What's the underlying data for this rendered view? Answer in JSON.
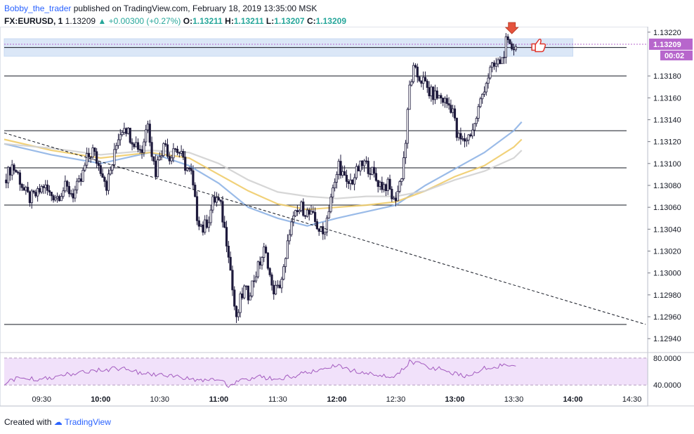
{
  "header": {
    "author": "Bobby_the_trader",
    "published": "published on TradingView.com, February 18, 2019 13:35:00 MSK",
    "symbol": "FX:EURUSD, 1",
    "last": "1.13209",
    "change": "+0.00300 (+0.27%)",
    "o_label": "O:",
    "o_value": "1.13211",
    "h_label": "H:",
    "h_value": "1.13211",
    "l_label": "L:",
    "l_value": "1.13207",
    "c_label": "C:",
    "c_value": "1.13209"
  },
  "footer": {
    "created_with": "Created with",
    "brand": "TradingView"
  },
  "colors": {
    "candle_up": "#ffffff",
    "candle_down": "#1e1a3c",
    "ma_blue": "#8fb4e6",
    "ma_gold": "#f0cc6a",
    "ma_gray": "#d2d2d2",
    "rsi_line": "#a35bbf",
    "rsi_band": "#f1e1fa",
    "zone": "#dbe7f7",
    "price_tag": "#b766cc"
  },
  "chart_data": {
    "type": "candlestick",
    "symbol": "FX:EURUSD",
    "ylim": [
      1.12935,
      1.13225
    ],
    "y_ticks": [
      "1.13220",
      "1.13180",
      "1.13160",
      "1.13140",
      "1.13120",
      "1.13100",
      "1.13080",
      "1.13060",
      "1.13040",
      "1.13020",
      "1.13000",
      "1.12980",
      "1.12960",
      "1.12940"
    ],
    "x_ticks": [
      "09:30",
      "10:00",
      "10:30",
      "11:00",
      "11:30",
      "12:00",
      "12:30",
      "13:00",
      "13:30",
      "14:00",
      "14:30"
    ],
    "x_tick_minutes": [
      570,
      600,
      630,
      660,
      690,
      720,
      750,
      780,
      810,
      840,
      870
    ],
    "x_range_minutes": [
      551,
      878
    ],
    "last_price": "1.13209",
    "countdown": "00:02",
    "horizontal_levels": [
      1.13206,
      1.1318,
      1.1313,
      1.13096,
      1.13062,
      1.12953
    ],
    "resistance_zone": [
      1.13198,
      1.13214
    ],
    "trendline": {
      "start": [
        551,
        1.13128
      ],
      "end": [
        877,
        1.12953
      ]
    },
    "close_path": [
      [
        551,
        1.13085
      ],
      [
        555,
        1.13098
      ],
      [
        558,
        1.1309
      ],
      [
        561,
        1.13075
      ],
      [
        564,
        1.13068
      ],
      [
        568,
        1.13072
      ],
      [
        571,
        1.1308
      ],
      [
        574,
        1.13072
      ],
      [
        578,
        1.1307
      ],
      [
        582,
        1.13078
      ],
      [
        586,
        1.13072
      ],
      [
        590,
        1.13084
      ],
      [
        593,
        1.13104
      ],
      [
        596,
        1.13112
      ],
      [
        599,
        1.13098
      ],
      [
        601,
        1.13092
      ],
      [
        603,
        1.1308
      ],
      [
        606,
        1.131
      ],
      [
        609,
        1.13125
      ],
      [
        612,
        1.13136
      ],
      [
        615,
        1.13125
      ],
      [
        618,
        1.13118
      ],
      [
        621,
        1.13112
      ],
      [
        624,
        1.1314
      ],
      [
        626,
        1.1311
      ],
      [
        628,
        1.13092
      ],
      [
        630,
        1.1311
      ],
      [
        633,
        1.13118
      ],
      [
        635,
        1.13105
      ],
      [
        637,
        1.13115
      ],
      [
        640,
        1.1311
      ],
      [
        643,
        1.13098
      ],
      [
        646,
        1.1309
      ],
      [
        649,
        1.13052
      ],
      [
        652,
        1.1304
      ],
      [
        655,
        1.1305
      ],
      [
        657,
        1.13065
      ],
      [
        659,
        1.13068
      ],
      [
        661,
        1.1306
      ],
      [
        663,
        1.1304
      ],
      [
        665,
        1.1302
      ],
      [
        667,
        1.12985
      ],
      [
        669,
        1.12955
      ],
      [
        671,
        1.12975
      ],
      [
        673,
        1.12985
      ],
      [
        675,
        1.1298
      ],
      [
        677,
        1.1299
      ],
      [
        679,
        1.13
      ],
      [
        681,
        1.1301
      ],
      [
        683,
        1.1302
      ],
      [
        685,
        1.1301
      ],
      [
        687,
        1.12985
      ],
      [
        690,
        1.12985
      ],
      [
        692,
        1.12995
      ],
      [
        694,
        1.1301
      ],
      [
        696,
        1.1304
      ],
      [
        699,
        1.13052
      ],
      [
        702,
        1.1306
      ],
      [
        705,
        1.13055
      ],
      [
        708,
        1.1305
      ],
      [
        711,
        1.1304
      ],
      [
        713,
        1.13035
      ],
      [
        715,
        1.1305
      ],
      [
        717,
        1.1307
      ],
      [
        719,
        1.1308
      ],
      [
        721,
        1.131
      ],
      [
        723,
        1.1309
      ],
      [
        725,
        1.1308
      ],
      [
        728,
        1.13085
      ],
      [
        731,
        1.13095
      ],
      [
        734,
        1.131
      ],
      [
        737,
        1.13095
      ],
      [
        740,
        1.13085
      ],
      [
        743,
        1.1308
      ],
      [
        746,
        1.1308
      ],
      [
        749,
        1.13065
      ],
      [
        751,
        1.13075
      ],
      [
        753,
        1.1309
      ],
      [
        755,
        1.1312
      ],
      [
        757,
        1.1317
      ],
      [
        759,
        1.13185
      ],
      [
        761,
        1.1318
      ],
      [
        764,
        1.13175
      ],
      [
        767,
        1.13165
      ],
      [
        770,
        1.13162
      ],
      [
        773,
        1.1316
      ],
      [
        776,
        1.13155
      ],
      [
        779,
        1.1315
      ],
      [
        781,
        1.13125
      ],
      [
        784,
        1.1312
      ],
      [
        787,
        1.13125
      ],
      [
        790,
        1.13135
      ],
      [
        792,
        1.1315
      ],
      [
        795,
        1.1317
      ],
      [
        798,
        1.13185
      ],
      [
        801,
        1.1319
      ],
      [
        804,
        1.13195
      ],
      [
        806,
        1.1321
      ],
      [
        808,
        1.13205
      ],
      [
        811,
        1.13209
      ]
    ],
    "moving_averages": [
      {
        "name": "",
        "color_key": "ma_blue",
        "points": [
          [
            551,
            1.13118
          ],
          [
            575,
            1.13108
          ],
          [
            600,
            1.131
          ],
          [
            625,
            1.1311
          ],
          [
            645,
            1.13098
          ],
          [
            660,
            1.13082
          ],
          [
            675,
            1.1306
          ],
          [
            690,
            1.1305
          ],
          [
            705,
            1.13043
          ],
          [
            720,
            1.1305
          ],
          [
            735,
            1.13056
          ],
          [
            750,
            1.13062
          ],
          [
            765,
            1.1308
          ],
          [
            780,
            1.13095
          ],
          [
            795,
            1.1311
          ],
          [
            810,
            1.1313
          ],
          [
            814,
            1.13138
          ]
        ]
      },
      {
        "name": "",
        "color_key": "ma_gold",
        "points": [
          [
            551,
            1.13122
          ],
          [
            575,
            1.13112
          ],
          [
            600,
            1.13105
          ],
          [
            625,
            1.1311
          ],
          [
            645,
            1.13105
          ],
          [
            660,
            1.1309
          ],
          [
            675,
            1.13075
          ],
          [
            690,
            1.13063
          ],
          [
            705,
            1.13058
          ],
          [
            720,
            1.1306
          ],
          [
            735,
            1.13062
          ],
          [
            750,
            1.13065
          ],
          [
            765,
            1.13075
          ],
          [
            780,
            1.13088
          ],
          [
            795,
            1.13098
          ],
          [
            810,
            1.13115
          ],
          [
            814,
            1.13122
          ]
        ]
      },
      {
        "name": "",
        "color_key": "ma_gray",
        "points": [
          [
            551,
            1.13118
          ],
          [
            575,
            1.13114
          ],
          [
            600,
            1.13108
          ],
          [
            625,
            1.13112
          ],
          [
            645,
            1.1311
          ],
          [
            660,
            1.131
          ],
          [
            675,
            1.13085
          ],
          [
            690,
            1.13074
          ],
          [
            705,
            1.1307
          ],
          [
            720,
            1.13068
          ],
          [
            735,
            1.1307
          ],
          [
            750,
            1.1307
          ],
          [
            765,
            1.13075
          ],
          [
            780,
            1.13085
          ],
          [
            795,
            1.13093
          ],
          [
            810,
            1.13105
          ],
          [
            814,
            1.13112
          ]
        ]
      }
    ],
    "rsi": {
      "levels": [
        "80.0000",
        "40.0000"
      ],
      "level_values": [
        80,
        40
      ],
      "ylim": [
        35,
        84
      ],
      "points": [
        [
          551,
          42
        ],
        [
          560,
          52
        ],
        [
          570,
          48
        ],
        [
          580,
          55
        ],
        [
          590,
          58
        ],
        [
          600,
          62
        ],
        [
          610,
          65
        ],
        [
          620,
          58
        ],
        [
          630,
          55
        ],
        [
          640,
          52
        ],
        [
          650,
          45
        ],
        [
          660,
          48
        ],
        [
          665,
          38
        ],
        [
          670,
          45
        ],
        [
          680,
          52
        ],
        [
          690,
          48
        ],
        [
          700,
          55
        ],
        [
          710,
          62
        ],
        [
          720,
          68
        ],
        [
          730,
          60
        ],
        [
          740,
          55
        ],
        [
          750,
          52
        ],
        [
          757,
          75
        ],
        [
          765,
          68
        ],
        [
          775,
          62
        ],
        [
          785,
          52
        ],
        [
          795,
          65
        ],
        [
          805,
          70
        ],
        [
          811,
          68
        ]
      ]
    },
    "markers": {
      "arrow_at": [
        809,
        1.13216
      ],
      "thumb_at": [
        817,
        1.13208
      ]
    }
  }
}
